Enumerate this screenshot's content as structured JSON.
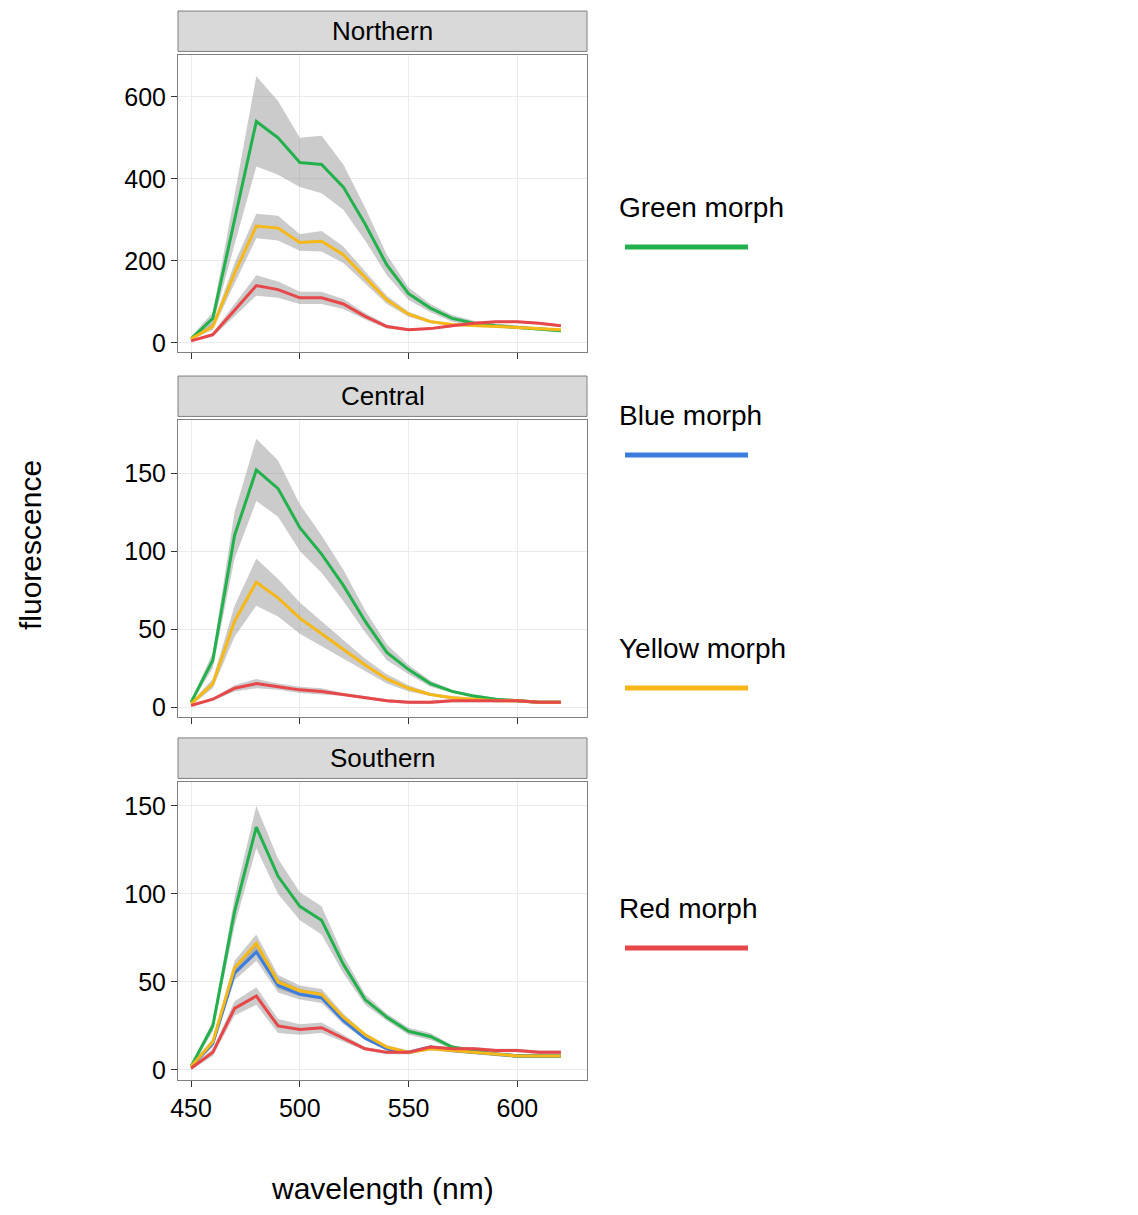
{
  "chart_data": {
    "type": "line",
    "x_label": "wavelength (nm)",
    "y_label": "fluorescence",
    "grid": true,
    "legend": "right",
    "x": [
      450,
      460,
      470,
      480,
      490,
      500,
      510,
      520,
      530,
      540,
      550,
      560,
      570,
      580,
      590,
      600,
      610,
      620
    ],
    "xlim": [
      444,
      632
    ],
    "xticks": [
      450,
      500,
      550,
      600
    ],
    "panels": [
      {
        "title": "Northern",
        "ylim": [
          -22,
          702
        ],
        "yticks": [
          0,
          200,
          400,
          600
        ],
        "series": [
          {
            "name": "Green morph",
            "color": "#22b14c",
            "values": [
              10,
              60,
              300,
              540,
              500,
              440,
              435,
              380,
              290,
              190,
              120,
              85,
              60,
              48,
              42,
              38,
              34,
              30
            ],
            "error": [
              5,
              15,
              60,
              110,
              90,
              60,
              70,
              55,
              40,
              25,
              15,
              10,
              8,
              6,
              5,
              5,
              4,
              4
            ]
          },
          {
            "name": "Yellow morph",
            "color": "#f5b816",
            "values": [
              10,
              40,
              170,
              285,
              280,
              245,
              248,
              215,
              160,
              105,
              70,
              52,
              45,
              42,
              40,
              38,
              35,
              32
            ],
            "error": [
              3,
              8,
              25,
              30,
              30,
              20,
              25,
              20,
              15,
              10,
              6,
              4,
              3,
              3,
              3,
              3,
              3,
              3
            ]
          },
          {
            "name": "Red morph",
            "color": "#e8474a",
            "values": [
              5,
              20,
              80,
              140,
              130,
              110,
              110,
              95,
              65,
              40,
              32,
              35,
              42,
              48,
              52,
              52,
              48,
              42
            ],
            "error": [
              2,
              5,
              15,
              25,
              20,
              15,
              15,
              12,
              8,
              5,
              3,
              3,
              3,
              3,
              3,
              3,
              3,
              3
            ]
          }
        ]
      },
      {
        "title": "Central",
        "ylim": [
          -6.4,
          184
        ],
        "yticks": [
          0,
          50,
          100,
          150
        ],
        "series": [
          {
            "name": "Green morph",
            "color": "#22b14c",
            "values": [
              3,
              30,
              110,
              152,
              140,
              115,
              98,
              78,
              55,
              35,
              24,
              15,
              10,
              7,
              5,
              4,
              3,
              3
            ],
            "error": [
              1,
              5,
              15,
              20,
              18,
              15,
              12,
              10,
              7,
              5,
              3,
              2,
              1,
              1,
              1,
              1,
              1,
              1
            ]
          },
          {
            "name": "Yellow morph",
            "color": "#f5b816",
            "values": [
              2,
              15,
              55,
              80,
              70,
              57,
              47,
              37,
              27,
              18,
              12,
              8,
              6,
              5,
              4,
              4,
              3,
              3
            ],
            "error": [
              1,
              3,
              10,
              15,
              12,
              10,
              8,
              6,
              4,
              3,
              2,
              1,
              1,
              1,
              1,
              1,
              1,
              1
            ]
          },
          {
            "name": "Red morph",
            "color": "#e8474a",
            "values": [
              1,
              5,
              12,
              15,
              13,
              11,
              10,
              8,
              6,
              4,
              3,
              3,
              4,
              4,
              4,
              4,
              3,
              3
            ],
            "error": [
              0.5,
              1,
              2,
              3,
              2,
              2,
              2,
              1,
              1,
              1,
              1,
              1,
              1,
              1,
              1,
              1,
              1,
              1
            ]
          }
        ]
      },
      {
        "title": "Southern",
        "ylim": [
          -5.7,
          163.6
        ],
        "yticks": [
          0,
          50,
          100,
          150
        ],
        "series": [
          {
            "name": "Green morph",
            "color": "#22b14c",
            "values": [
              2,
              25,
              90,
              138,
              110,
              93,
              85,
              60,
              40,
              30,
              22,
              19,
              13,
              11,
              9,
              8,
              8,
              8
            ],
            "error": [
              1,
              3,
              8,
              12,
              10,
              8,
              8,
              5,
              3,
              2,
              2,
              2,
              1,
              1,
              1,
              1,
              1,
              1
            ]
          },
          {
            "name": "Blue morph",
            "color": "#3b7ddd",
            "values": [
              2,
              15,
              55,
              67,
              48,
              43,
              41,
              28,
              18,
              12,
              10,
              13,
              11,
              10,
              9,
              8,
              8,
              8
            ],
            "error": [
              1,
              2,
              4,
              5,
              4,
              3,
              3,
              2,
              1,
              1,
              1,
              1,
              1,
              1,
              1,
              1,
              1,
              1
            ]
          },
          {
            "name": "Yellow morph",
            "color": "#f5b816",
            "values": [
              2,
              16,
              58,
              72,
              50,
              45,
              43,
              30,
              20,
              13,
              10,
              12,
              11,
              10,
              9,
              8,
              8,
              8
            ],
            "error": [
              1,
              2,
              4,
              5,
              4,
              3,
              3,
              2,
              1,
              1,
              1,
              1,
              1,
              1,
              1,
              1,
              1,
              1
            ]
          },
          {
            "name": "Red morph",
            "color": "#e8474a",
            "values": [
              1,
              10,
              35,
              42,
              25,
              23,
              24,
              18,
              12,
              10,
              10,
              13,
              12,
              12,
              11,
              11,
              10,
              10
            ],
            "error": [
              1,
              2,
              4,
              5,
              4,
              3,
              3,
              2,
              1,
              1,
              1,
              1,
              1,
              1,
              1,
              1,
              1,
              1
            ]
          }
        ]
      }
    ]
  }
}
